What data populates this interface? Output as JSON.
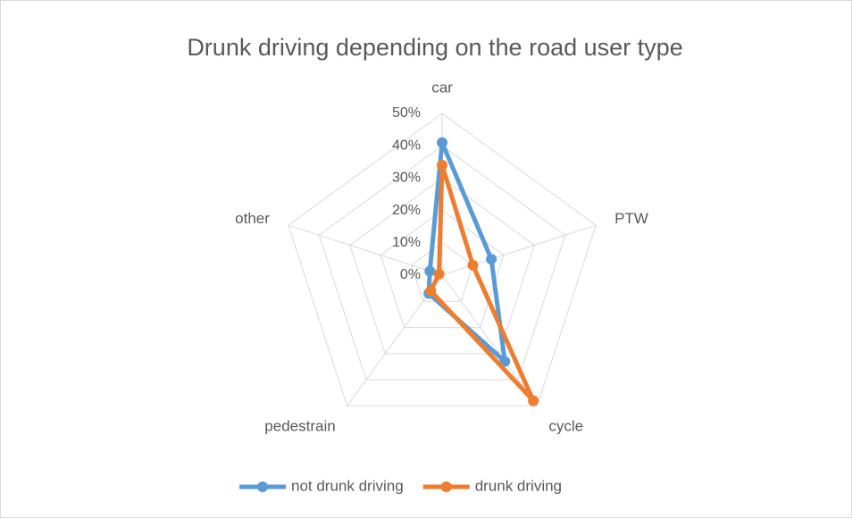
{
  "chart_data": {
    "type": "radar",
    "title": "Drunk driving depending on the road user type",
    "categories": [
      "car",
      "PTW",
      "cycle",
      "pedestrain",
      "other"
    ],
    "series": [
      {
        "name": "not drunk driving",
        "color": "#5b9bd5",
        "values": [
          41,
          16,
          33,
          7,
          4
        ]
      },
      {
        "name": "drunk driving",
        "color": "#ed7d31",
        "values": [
          34,
          10,
          48,
          6,
          1
        ]
      }
    ],
    "ylim": [
      0,
      50
    ],
    "yticks": [
      {
        "value": 0,
        "label": "0%"
      },
      {
        "value": 10,
        "label": "10%"
      },
      {
        "value": 20,
        "label": "20%"
      },
      {
        "value": 30,
        "label": "30%"
      },
      {
        "value": 40,
        "label": "40%"
      },
      {
        "value": 50,
        "label": "50%"
      }
    ],
    "grid": true,
    "legend": "bottom"
  }
}
